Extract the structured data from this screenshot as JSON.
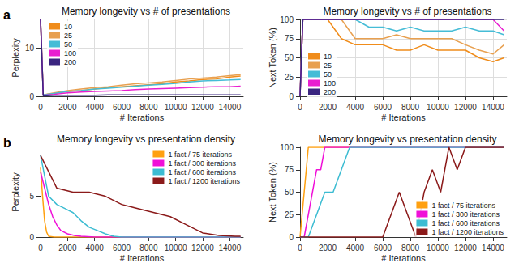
{
  "chart_data": [
    {
      "type": "line",
      "title": "Memory longevity vs # of presentations",
      "annotations": [
        "a"
      ],
      "x_label": "# Iterations",
      "y_label": "Perplexity",
      "xlim": [
        0,
        15000
      ],
      "xticks": [
        0,
        2000,
        4000,
        6000,
        8000,
        10000,
        12000,
        14000
      ],
      "ylim": [
        0,
        16
      ],
      "yticks": [
        0,
        10
      ],
      "grid": true,
      "legend": "upper left",
      "series": [
        {
          "name": "10",
          "color": "#f08c1a",
          "x": [
            0,
            200,
            1000,
            2000,
            3000,
            4000,
            5000,
            6000,
            7000,
            8000,
            9000,
            10000,
            11000,
            12000,
            13000,
            14000,
            14800
          ],
          "values": [
            16,
            0.3,
            0.6,
            1.0,
            1.2,
            1.5,
            1.8,
            2.0,
            2.2,
            2.4,
            2.6,
            3.0,
            3.2,
            3.5,
            3.6,
            4.0,
            4.2
          ]
        },
        {
          "name": "25",
          "color": "#e8a050",
          "x": [
            0,
            200,
            1000,
            2000,
            3000,
            4000,
            5000,
            6000,
            7000,
            8000,
            9000,
            10000,
            11000,
            12000,
            13000,
            14000,
            14800
          ],
          "values": [
            16,
            0.3,
            0.7,
            1.2,
            1.5,
            1.8,
            2.0,
            2.3,
            2.6,
            2.8,
            3.0,
            3.3,
            3.6,
            3.8,
            4.0,
            4.3,
            4.5
          ]
        },
        {
          "name": "50",
          "color": "#45bcd6",
          "x": [
            0,
            200,
            1000,
            2000,
            3000,
            4000,
            5000,
            6000,
            7000,
            8000,
            9000,
            10000,
            11000,
            12000,
            13000,
            14000,
            14800
          ],
          "values": [
            16,
            0.3,
            0.6,
            1.0,
            1.2,
            1.5,
            1.7,
            1.9,
            2.1,
            2.3,
            2.5,
            2.7,
            3.0,
            3.2,
            3.3,
            3.4,
            3.5
          ]
        },
        {
          "name": "100",
          "color": "#e81ed0",
          "x": [
            0,
            200,
            1000,
            2000,
            3000,
            4000,
            5000,
            6000,
            7000,
            8000,
            9000,
            10000,
            11000,
            12000,
            13000,
            14000,
            14800
          ],
          "values": [
            16,
            0.2,
            0.4,
            0.7,
            0.9,
            1.0,
            1.1,
            1.2,
            1.4,
            1.5,
            1.6,
            1.7,
            1.8,
            1.9,
            2.0,
            2.0,
            2.1
          ]
        },
        {
          "name": "200",
          "color": "#3a2580",
          "x": [
            0,
            200,
            1000,
            2000,
            3000,
            4000,
            5000,
            6000,
            7000,
            8000,
            9000,
            10000,
            11000,
            12000,
            13000,
            14000,
            14800
          ],
          "values": [
            16,
            0.1,
            0.2,
            0.2,
            0.2,
            0.2,
            0.3,
            0.3,
            0.3,
            0.3,
            0.3,
            0.3,
            0.3,
            0.3,
            0.3,
            0.3,
            0.3
          ]
        }
      ]
    },
    {
      "type": "line",
      "title": "Memory longevity vs # of presentations",
      "x_label": "# Iterations",
      "y_label": "Next Token (%)",
      "xlim": [
        0,
        15000
      ],
      "xticks": [
        0,
        2000,
        4000,
        6000,
        8000,
        10000,
        12000,
        14000
      ],
      "ylim": [
        0,
        100
      ],
      "yticks": [
        0,
        25,
        50,
        75,
        100
      ],
      "grid": true,
      "legend": "lower left",
      "series": [
        {
          "name": "10",
          "color": "#f08c1a",
          "x": [
            0,
            200,
            1000,
            2000,
            3000,
            4000,
            5000,
            6000,
            7000,
            8000,
            9000,
            10000,
            11000,
            12000,
            13000,
            14000,
            14800
          ],
          "values": [
            0,
            100,
            100,
            100,
            75,
            67,
            67,
            67,
            60,
            60,
            67,
            60,
            60,
            60,
            50,
            45,
            50
          ]
        },
        {
          "name": "25",
          "color": "#e8a050",
          "x": [
            0,
            200,
            1000,
            2000,
            3000,
            4000,
            5000,
            6000,
            7000,
            8000,
            9000,
            10000,
            11000,
            12000,
            13000,
            14000,
            14800
          ],
          "values": [
            0,
            100,
            100,
            100,
            100,
            75,
            75,
            75,
            80,
            75,
            75,
            75,
            75,
            67,
            60,
            55,
            67
          ]
        },
        {
          "name": "50",
          "color": "#45bcd6",
          "x": [
            0,
            200,
            1000,
            2000,
            3000,
            4000,
            5000,
            6000,
            7000,
            8000,
            9000,
            10000,
            11000,
            12000,
            13000,
            14000,
            14800
          ],
          "values": [
            0,
            100,
            100,
            100,
            100,
            100,
            90,
            90,
            85,
            90,
            85,
            85,
            85,
            90,
            85,
            85,
            80
          ]
        },
        {
          "name": "100",
          "color": "#e81ed0",
          "x": [
            0,
            200,
            1000,
            2000,
            3000,
            4000,
            5000,
            6000,
            7000,
            8000,
            9000,
            10000,
            11000,
            12000,
            13000,
            14000,
            14800
          ],
          "values": [
            0,
            100,
            100,
            100,
            100,
            100,
            100,
            100,
            100,
            100,
            100,
            100,
            100,
            100,
            100,
            100,
            85
          ]
        },
        {
          "name": "200",
          "color": "#3a2580",
          "x": [
            0,
            200,
            1000,
            2000,
            3000,
            4000,
            5000,
            6000,
            7000,
            8000,
            9000,
            10000,
            11000,
            12000,
            13000,
            14000,
            14800
          ],
          "values": [
            0,
            100,
            100,
            100,
            100,
            100,
            100,
            100,
            100,
            100,
            100,
            100,
            100,
            100,
            100,
            100,
            100
          ]
        }
      ]
    },
    {
      "type": "line",
      "title": "Memory longevity vs presentation density",
      "annotations": [
        "b"
      ],
      "x_label": "# Iterations",
      "y_label": "Perplexity",
      "xlim": [
        0,
        15000
      ],
      "xticks": [
        0,
        2000,
        4000,
        6000,
        8000,
        10000,
        12000,
        14000
      ],
      "ylim": [
        0,
        11
      ],
      "yticks": [
        0,
        5
      ],
      "grid": false,
      "legend": "upper right",
      "series": [
        {
          "name": "1 fact / 75 iterations",
          "color": "#ffa010",
          "x": [
            0,
            150,
            300,
            450,
            600,
            1000,
            2000,
            4000,
            6000,
            8000,
            10000,
            12000,
            14000,
            14800
          ],
          "values": [
            8.5,
            5.0,
            2.0,
            0.6,
            0.1,
            0.0,
            0.0,
            0.0,
            0.0,
            0.0,
            0.0,
            0.0,
            0.0,
            0.0
          ]
        },
        {
          "name": "1 fact / 300 iterations",
          "color": "#f010d8",
          "x": [
            0,
            300,
            600,
            900,
            1200,
            1500,
            2000,
            2500,
            3000,
            4000,
            6000,
            8000,
            10000,
            12000,
            14000,
            14800
          ],
          "values": [
            8.0,
            6.0,
            4.0,
            2.5,
            1.5,
            0.8,
            0.4,
            0.2,
            0.1,
            0.0,
            0.0,
            0.0,
            0.0,
            0.0,
            0.0,
            0.0
          ]
        },
        {
          "name": "1 fact / 600 iterations",
          "color": "#3cbcd2",
          "x": [
            0,
            600,
            1200,
            1800,
            2400,
            3000,
            3600,
            4200,
            4800,
            5400,
            6000,
            8000,
            10000,
            12000,
            14000,
            14800
          ],
          "values": [
            10.0,
            5.0,
            4.0,
            3.5,
            3.0,
            2.0,
            1.2,
            0.8,
            0.4,
            0.1,
            0.0,
            0.0,
            0.0,
            0.0,
            0.0,
            0.0
          ]
        },
        {
          "name": "1 fact / 1200 iterations",
          "color": "#8b1a1a",
          "x": [
            0,
            1200,
            2400,
            3600,
            4800,
            6000,
            7200,
            8400,
            9600,
            10800,
            12000,
            13200,
            14400,
            14800
          ],
          "values": [
            10.0,
            6.0,
            5.5,
            5.5,
            5.0,
            4.0,
            3.5,
            3.0,
            2.5,
            1.5,
            0.5,
            0.2,
            0.1,
            0.1
          ]
        }
      ]
    },
    {
      "type": "line",
      "title": "Memory longevity vs presentation density",
      "x_label": "# Iterations",
      "y_label": "Next Token (%)",
      "xlim": [
        0,
        15000
      ],
      "xticks": [
        0,
        2000,
        4000,
        6000,
        8000,
        10000,
        12000,
        14000
      ],
      "ylim": [
        0,
        100
      ],
      "yticks": [
        0,
        25,
        50,
        75,
        100
      ],
      "grid": false,
      "legend": "lower right",
      "series": [
        {
          "name": "1 fact / 75 iterations",
          "color": "#ffa010",
          "x": [
            0,
            150,
            300,
            450,
            600,
            2000,
            4000,
            6000,
            8000,
            10000,
            12000,
            14000,
            14800
          ],
          "values": [
            0,
            25,
            50,
            75,
            100,
            100,
            100,
            100,
            100,
            100,
            100,
            100,
            100
          ]
        },
        {
          "name": "1 fact / 300 iterations",
          "color": "#f010d8",
          "x": [
            0,
            300,
            600,
            900,
            1200,
            1500,
            1800,
            2100,
            4000,
            6000,
            8000,
            10000,
            12000,
            14000,
            14800
          ],
          "values": [
            0,
            0,
            25,
            50,
            75,
            75,
            100,
            100,
            100,
            100,
            100,
            100,
            100,
            100,
            100
          ]
        },
        {
          "name": "1 fact / 600 iterations",
          "color": "#3cbcd2",
          "x": [
            0,
            600,
            1200,
            1800,
            2400,
            3000,
            3600,
            4000,
            6000,
            8000,
            10000,
            12000,
            14000,
            14800
          ],
          "values": [
            0,
            0,
            25,
            50,
            50,
            75,
            100,
            100,
            100,
            100,
            100,
            100,
            100,
            100
          ]
        },
        {
          "name": "1 fact / 1200 iterations",
          "color": "#8b1a1a",
          "x": [
            0,
            1200,
            2400,
            3600,
            4800,
            6000,
            6600,
            7200,
            7800,
            8400,
            9000,
            9600,
            10200,
            10800,
            11400,
            12000,
            13200,
            14400,
            14800
          ],
          "values": [
            0,
            0,
            0,
            0,
            0,
            0,
            25,
            50,
            25,
            0,
            50,
            75,
            50,
            100,
            75,
            100,
            100,
            100,
            100
          ]
        }
      ]
    }
  ]
}
